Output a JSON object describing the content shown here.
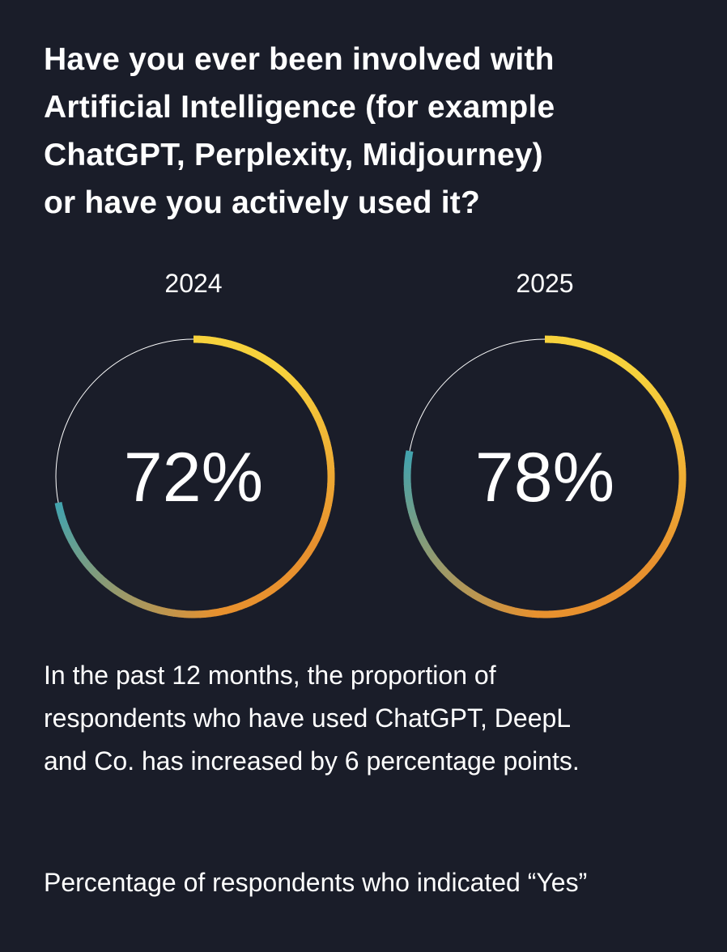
{
  "title_lines": [
    "Have you ever been involved with",
    "Artificial Intelligence (for example",
    "ChatGPT, Perplexity, Midjourney)",
    "or have you actively used it?"
  ],
  "body_lines": [
    "In the past 12 months, the proportion of",
    "respondents who have used ChatGPT, DeepL",
    "and Co. has increased by 6 percentage points."
  ],
  "footnote": "Percentage of respondents who indicated “Yes”",
  "colors": {
    "background": "#1a1d29",
    "ring_track": "#ffffff",
    "gradient_start": "#3fa3b0",
    "gradient_mid": "#e8912e",
    "gradient_end": "#f7d23c"
  },
  "chart_data": [
    {
      "type": "pie",
      "label": "2024",
      "value": 72,
      "value_label": "72%",
      "ylim": [
        0,
        100
      ]
    },
    {
      "type": "pie",
      "label": "2025",
      "value": 78,
      "value_label": "78%",
      "ylim": [
        0,
        100
      ]
    }
  ]
}
